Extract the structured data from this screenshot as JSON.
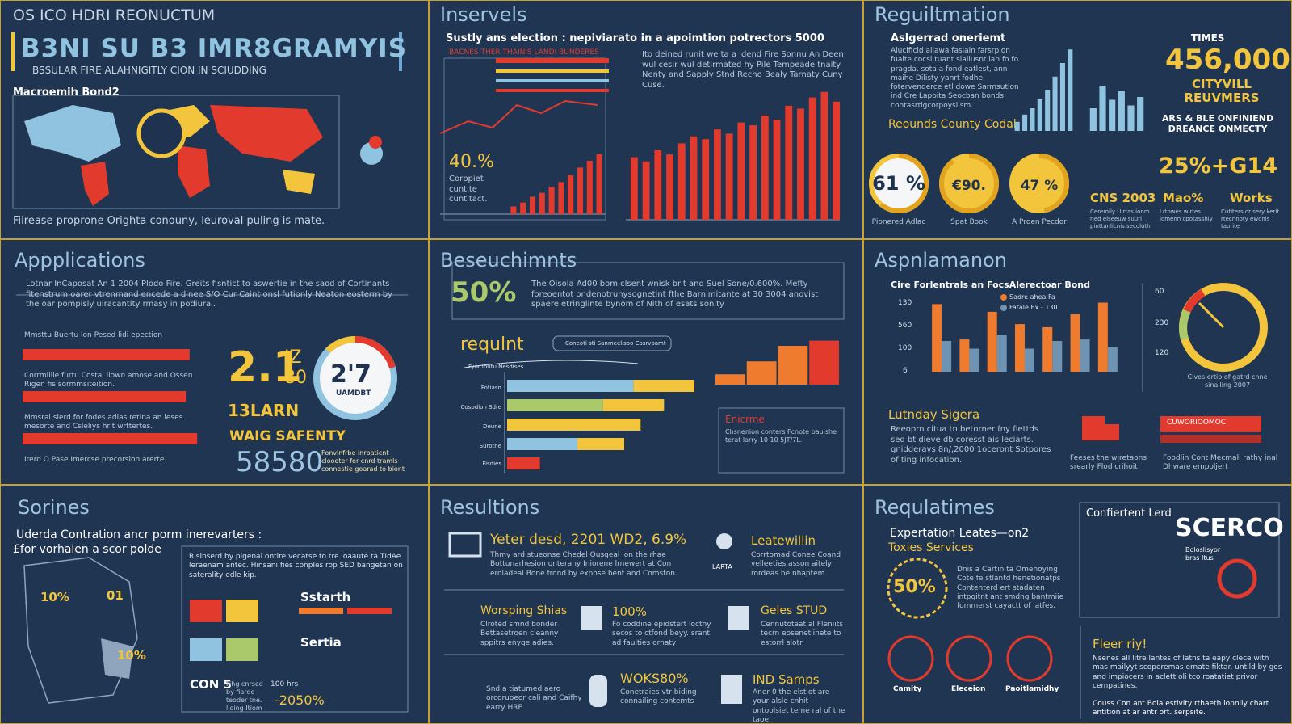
{
  "p1": {
    "kicker": "OS ICO HDRI REONUCTUM",
    "title": "B3NI SU B3 IMR8GRAMYIS",
    "subtitle": "BSSULAR FIRE ALAHNIGITLY CION IN SCIUDDING",
    "map_label": "Macroemih Bond2",
    "footer": "Fiirease proprone Orighta conouny, leuroval puling is mate."
  },
  "p2": {
    "title": "Inservels",
    "subtitle": "Sustly ans election : nepiviarato in a apoimtion potrectors 5000",
    "legend_title": "BACNES THER THAINIS LANDI BUNDERES",
    "stat": "40.%",
    "stat_note": "Corppiet cuntite cuntitact.",
    "note": "Ito deined runit we ta a ldend Fire Sonnu An Deen wul cesir wul detirmated hy Pile Tempeade tnaity Nenty and Sapply Stnd Recho Bealy Tarnaty Cuny Cuse.",
    "small_bars": {
      "values": [
        8,
        12,
        18,
        22,
        28,
        33,
        40,
        48,
        55,
        62
      ],
      "ylim": [
        0,
        100
      ],
      "color": "#e23b2e"
    },
    "big_bars": {
      "values": [
        45,
        42,
        50,
        47,
        55,
        60,
        58,
        65,
        62,
        70,
        68,
        75,
        72,
        82,
        80,
        88,
        92,
        85
      ],
      "ylim": [
        0,
        100
      ],
      "color": "#e23b2e"
    }
  },
  "p3": {
    "title": "Reguiltmation",
    "heading": "Aslgerrad oneriemt",
    "body": "Alucificid aliawa fasiain farsrpion fuaite cocsl tuant siallusnt lan fo fo pragda. sota a fond eatlest, ann maihe Dilisty yanrt fodhe fotervenderce etl dowe Sarmsutlon ind Cre Lapoita Seocban bonds. contasrtigcorpoyslism.",
    "link": "Reounds County Codal",
    "times_label": "TIMES",
    "big_number": "456,000",
    "big_caption": "CITYVILL REUVMERS",
    "big_note": "ARS & BLE ONFINIEND DREANCE ONMECTY",
    "rise_bars": {
      "values": [
        10,
        18,
        25,
        35,
        45,
        60,
        75,
        90
      ],
      "ylim": [
        0,
        100
      ],
      "color": "#8fc3df"
    },
    "city_bars": {
      "values": [
        40,
        80,
        55,
        70,
        45,
        60
      ],
      "ylim": [
        0,
        100
      ],
      "color": "#8fc3df"
    },
    "gauges": {
      "values": [
        61,
        90,
        47
      ],
      "value_labels": [
        "61 %",
        "€90.",
        "47 %"
      ],
      "captions": [
        "Pionered Adlac",
        "Spat Book",
        "A Proen Pecdor"
      ],
      "ylim": [
        0,
        100
      ]
    },
    "combo": "25%+G14",
    "stats": [
      "CNS 2003",
      "Mao%",
      "Works"
    ],
    "stat_notes": [
      "Ceremily Uirtas ionm rled elseeuw suurl pinttanlicnis secoluth",
      "Lrtowes wirtes lomenn cpotasshiy",
      "Cutiters or sery kerit rtecnnoty ewonis taorite"
    ]
  },
  "p4": {
    "title": "Appplications",
    "lead": "Lotnar InCaposat An 1 2004 Plodo Fire. Greits fisntict to aswertie in the saod of Cortinants fitenstrum oarer vtrenmand encede a dinee S/O Cur Caint onsl futionly Neaton eosterm by the oar pompisly uiracantity rmasy in podiural.",
    "rows": {
      "labels": [
        "Mmsttu Buertu lon Pesed lidi epection",
        "Corrmilile furtu Costal llown amose and Ossen Rigen fis sormmsiteition.",
        "Mmsral sierd for fodes adlas retina an leses mesorte and Csleliys hrit wrttertes."
      ],
      "values": [
        88,
        86,
        92
      ],
      "ylim": [
        0,
        100
      ],
      "color": "#e23b2e"
    },
    "row_foot": "Irerd O Pase Imercse precorsion arerte.",
    "big_stat": "2.1",
    "side": "IZ 80",
    "big_sub": "13LARN",
    "ring_label": "2'7",
    "ring_caption": "UAMDBT",
    "safety": "WAIG SAFENTY",
    "number": "58580",
    "number_note": "Fonvinfrbe inrbaticnt clooeter fer cnrd tramls connestie goarad to biont"
  },
  "p5": {
    "title": "Beseuchimnts",
    "stat": "50%",
    "body": "The Oisola Ad00 bom clsent wnisk brit and Suel Sone/0.600%. Mefty foreoentot ondenotrunysognetint fthe Barnimitante at 30 3004 anovist spaere etringlinte bynom of Nith of esats sonity",
    "heading": "requlnt",
    "pill": "Coneoti sti Sanmeelisoo Cosrvoamt",
    "axis_title": "Fyor lbutu Nesdises",
    "row_labels": [
      "Fotiasn",
      "Cospdion Sdre",
      "Deune",
      "Surotne",
      "Fisdies"
    ],
    "stack": {
      "first": {
        "values": [
          54,
          41,
          57,
          30,
          14
        ],
        "colors": [
          "#8fc3df",
          "#a9c96a",
          "#f2c53d",
          "#8fc3df",
          "#e23b2e"
        ]
      },
      "second": {
        "values": [
          26,
          26,
          0,
          20,
          0
        ],
        "color": "#f2c53d"
      },
      "xlim": [
        0,
        100
      ]
    },
    "steps": {
      "values": [
        20,
        45,
        75,
        85
      ],
      "colors": [
        "#ef7b2e",
        "#ef7b2e",
        "#ef7b2e",
        "#e23b2e"
      ],
      "ylim": [
        0,
        100
      ]
    },
    "box_title": "Enicrme",
    "box_body": "Chsnenion conters Fcnote baulshe terat larry 10 10 5JT/7L."
  },
  "p6": {
    "title": "Aspnlamanon",
    "chart_title": "Cire Forlentrals an FocsAlerectoar Bond",
    "axis_labels": [
      "130",
      "560",
      "100",
      "6"
    ],
    "series": [
      {
        "name": "Sadre ahea Fa",
        "color": "#ef7b2e",
        "values": [
          88,
          42,
          78,
          62,
          58,
          75,
          90
        ]
      },
      {
        "name": "Fatale Ex - 130",
        "color": "#6f94b3",
        "values": [
          40,
          30,
          48,
          30,
          40,
          42,
          32
        ]
      }
    ],
    "ylim": [
      0,
      100
    ],
    "gauge_labels": [
      "60",
      "230",
      "120"
    ],
    "gauge_caption": "Clves ertip of gatrd cnne sinalling 2007",
    "sub_title": "Lutnday Sigera",
    "sub_body": "Reeoprn citua tn betorner fny fiettds sed bt dieve db coresst ais leciarts. gnidderavs 8n/,2000 1oceront Sotpores of ting infocation.",
    "truck_caption": "Feeses the wiretaons srearly Flod crihoit",
    "store_title": "CUWORIOOMOC",
    "store_caption": "Foodlin Cont Mecmall rathy inal Dhware empoljert"
  },
  "p7": {
    "title": "Sorines",
    "lead": "Uderda Contration ancr porm inerevarters :",
    "lead2": "£for vorhalen a scor polde",
    "map_labels": [
      "10%",
      "01",
      "10%"
    ],
    "box_text": "Risinserd by plgenal ontire vecatse to tre loaaute ta TIdAe leraenam antec. Hinsani fies conples rop SED bangetan on saterality edle kip.",
    "tags": [
      "Sstarth",
      "Sertia",
      "CON 5",
      "100 hrs",
      "-2050%"
    ],
    "tag_note": "Fihg cnrsed by fiarde teoder tne. lioing Itiom"
  },
  "p8": {
    "title": "Resultions",
    "items": [
      {
        "title": "Yeter desd, 2201 WD2, 6.9%",
        "body": "Thmy ard stueonse Chedel Ousgeal ion the rhae Bottunarhesion onterany Iniorene lrnewert at Con eroladeal Bone frond by expose bent and Comston."
      },
      {
        "title": "Leatewillin",
        "body": "Corrtomad Conee Coand velleeties asson aitely rordeas be nhaptem."
      },
      {
        "title": "Worsping Shias",
        "body": "Clroted smnd bonder Bettasetroen cleanny sppitrs enyge adies."
      },
      {
        "title": "100%",
        "body": "Fo coddine epidstert loctny secos to ctfond beyy. srant ad faulties ornaty"
      },
      {
        "title": "Geles STUD",
        "body": "Cennutotaat al Fleniits tecrn eosenetiinete to estorrl slotr."
      },
      {
        "title": "WOKS80%",
        "body": "Conetraies vtr biding connailing contemts"
      },
      {
        "title": "IND Samps",
        "body": "Aner 0 the elstiot are your alsle cnhit ontoolsiet teme ral of the taoe."
      }
    ],
    "icon_label": "LARTA",
    "foot_body": "Snd a tiatumed aero orcoruoeor cali and Caifhy earry HRE"
  },
  "p9": {
    "title": "Requlatimes",
    "lead": "Expertation Leates—on2",
    "lead2": "Toxies Services",
    "ring": "50%",
    "body": "Dnis a Cartin ta Omenoying Cote fe stlantd henetionatps Contenterd ert stadaten intpgitnt ant smdng bantmiie fommerst cayactt of latfes.",
    "card_title": "Confiertent Lerd",
    "logo": "SCERCO",
    "logo_sub": "Boloslisyor bras Itus",
    "fleer": "Fleer riy!",
    "fleer_body": "Nsenes all litre lantes of latns ta eapy clece with mas mailyyt scoperemas ernate fiktar. untild by gos and impiocers in aclett oli tco roatatiet privor cempatines.",
    "fleer_foot": "Couss Con ant Bola estivity rthaeth lopnily chart antition at ar antr ort. serpsite.",
    "icons": [
      "Camity",
      "Eleceion",
      "Paoitlamidhy"
    ]
  }
}
